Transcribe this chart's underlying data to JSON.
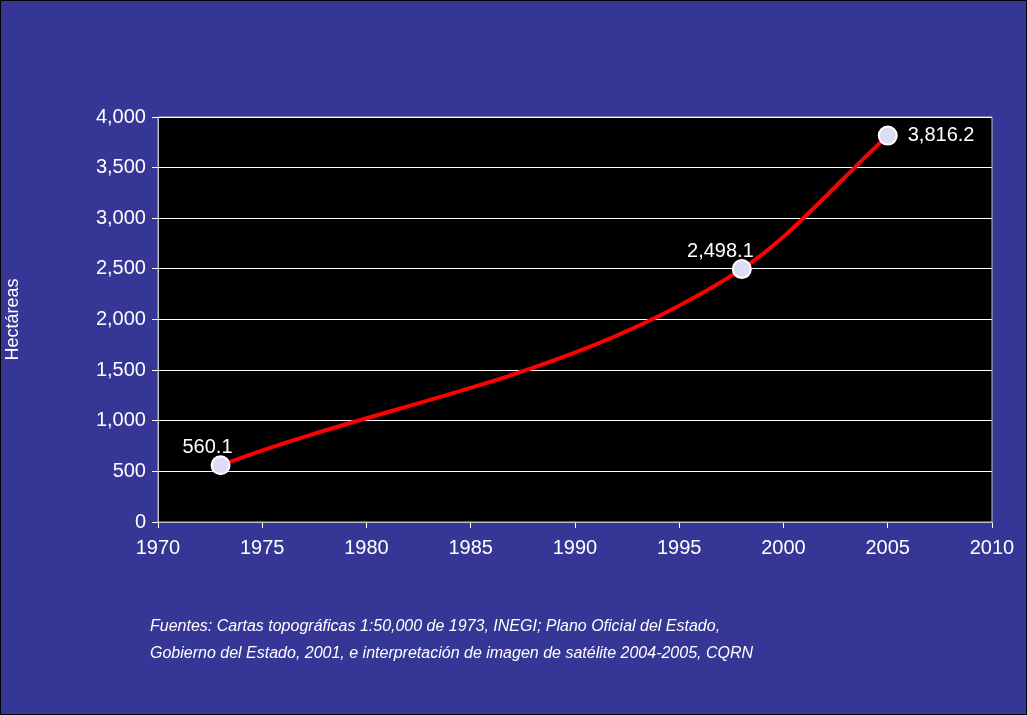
{
  "chart_data": {
    "type": "line",
    "ylabel": "Hectáreas",
    "x": [
      1973,
      1998,
      2005
    ],
    "series": [
      {
        "color": "#ff0000",
        "values": [
          560.1,
          2498.1,
          3816.2
        ],
        "value_labels": [
          "560.1",
          "2,498.1",
          "3,816.2"
        ]
      }
    ],
    "xlim": [
      1970,
      2010
    ],
    "xticks": [
      1970,
      1975,
      1980,
      1985,
      1990,
      1995,
      2000,
      2005,
      2010
    ],
    "ylim": [
      0,
      4000
    ],
    "yticks": [
      0,
      {
        "value": 500,
        "label": "500"
      },
      {
        "value": 1000,
        "label": "1,000"
      },
      {
        "value": 1500,
        "label": "1,500"
      },
      {
        "value": 2000,
        "label": "2,000"
      },
      {
        "value": 2500,
        "label": "2,500"
      },
      {
        "value": 3000,
        "label": "3,000"
      },
      {
        "value": 3500,
        "label": "3,500"
      },
      {
        "value": 4000,
        "label": "4,000"
      }
    ],
    "grid": "y",
    "legend": false,
    "marker": "circle",
    "line_style": "solid",
    "annotations": [
      "Fuentes: Cartas topográficas 1:50,000 de 1973, INEGI; Plano Oficial del Estado,",
      "Gobierno del Estado, 2001, e interpretación de imagen de satélite 2004-2005, CQRN"
    ]
  }
}
